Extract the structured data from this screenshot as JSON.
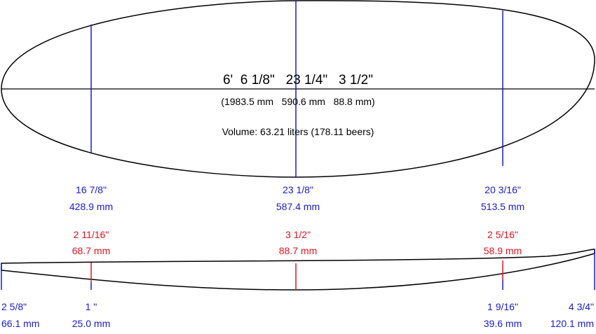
{
  "dimensions": {
    "imperial": "6'  6 1/8\"   23 1/4\"   3 1/2\"",
    "metric": "(1983.5 mm   590.6 mm   88.8 mm)",
    "volume": "Volume: 63.21 liters (178.11 beers)"
  },
  "widths": [
    {
      "imperial": "16 7/8\"",
      "metric": "428.9 mm"
    },
    {
      "imperial": "23 1/8\"",
      "metric": "587.4 mm"
    },
    {
      "imperial": "20 3/16\"",
      "metric": "513.5 mm"
    }
  ],
  "thicknesses": [
    {
      "imperial": "2 11/16\"",
      "metric": "68.7 mm"
    },
    {
      "imperial": "3 1/2\"",
      "metric": "88.7 mm"
    },
    {
      "imperial": "2 5/16\"",
      "metric": "58.9 mm"
    }
  ],
  "rockers": [
    {
      "imperial": "2 5/8\"",
      "metric": "66.1 mm"
    },
    {
      "imperial": "1 \"",
      "metric": "25.0 mm"
    },
    {
      "imperial": "1 9/16\"",
      "metric": "39.6 mm"
    },
    {
      "imperial": "4 3/4\"",
      "metric": "120.1 mm"
    }
  ]
}
